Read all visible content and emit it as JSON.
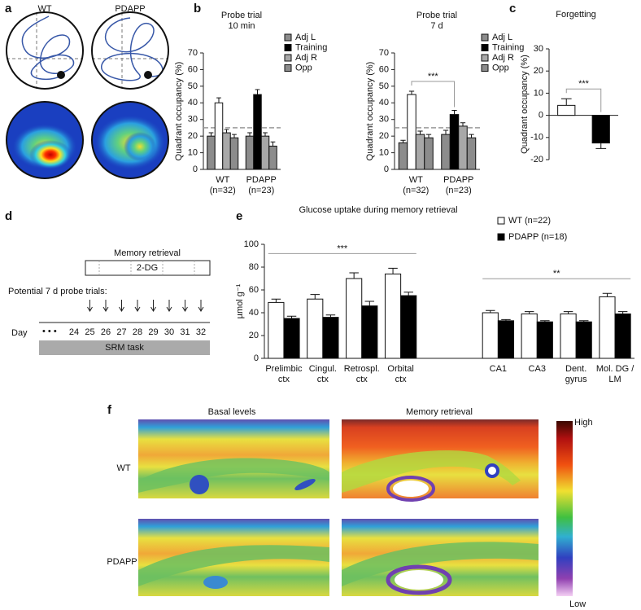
{
  "panel_labels": [
    "a",
    "b",
    "c",
    "d",
    "e",
    "f"
  ],
  "panel_a": {
    "columns": [
      "WT",
      "PDAPP"
    ]
  },
  "chart_data": [
    {
      "type": "bar",
      "title": "Probe trial",
      "subtitle": "10 min",
      "y_label": "Quadrant occupancy (%)",
      "categories": [
        [
          "WT",
          "(n=32)"
        ],
        [
          "PDAPP",
          "(n=23)"
        ]
      ],
      "series": [
        {
          "name": "Adj L",
          "color": "#8c8c8c",
          "values": [
            20,
            20
          ],
          "errors": [
            2,
            2
          ]
        },
        {
          "name": "Training",
          "color": "#000000",
          "bar_colors": [
            "#ffffff",
            "#000000"
          ],
          "values": [
            40,
            45
          ],
          "errors": [
            3,
            3
          ]
        },
        {
          "name": "Adj R",
          "color": "#a8a8a8",
          "values": [
            22,
            20
          ],
          "errors": [
            2,
            2
          ]
        },
        {
          "name": "Opp",
          "color": "#8c8c8c",
          "values": [
            19,
            14
          ],
          "errors": [
            2,
            2.5
          ]
        }
      ],
      "ylim": [
        0,
        70
      ],
      "yticks": [
        0,
        10,
        20,
        30,
        40,
        50,
        60,
        70
      ],
      "reference_line": 25
    },
    {
      "type": "bar",
      "title": "Probe trial",
      "subtitle": "7 d",
      "y_label": "Quadrant occupancy (%)",
      "categories": [
        [
          "WT",
          "(n=32)"
        ],
        [
          "PDAPP",
          "(n=23)"
        ]
      ],
      "series": [
        {
          "name": "Adj L",
          "color": "#8c8c8c",
          "values": [
            16,
            21
          ],
          "errors": [
            1.5,
            2.5
          ]
        },
        {
          "name": "Training",
          "color": "#000000",
          "bar_colors": [
            "#ffffff",
            "#000000"
          ],
          "values": [
            45,
            33
          ],
          "errors": [
            2,
            2.5
          ]
        },
        {
          "name": "Adj R",
          "color": "#a8a8a8",
          "values": [
            21,
            26
          ],
          "errors": [
            2,
            2
          ]
        },
        {
          "name": "Opp",
          "color": "#8c8c8c",
          "values": [
            19,
            19
          ],
          "errors": [
            2,
            2
          ]
        }
      ],
      "ylim": [
        0,
        70
      ],
      "yticks": [
        0,
        10,
        20,
        30,
        40,
        50,
        60,
        70
      ],
      "reference_line": 25,
      "annotations": [
        "***"
      ]
    },
    {
      "type": "bar",
      "title": "Forgetting",
      "y_label": "Quadrant occupancy (%)",
      "values": [
        4.5,
        -12.5
      ],
      "errors": [
        3,
        2.5
      ],
      "colors": [
        "#ffffff",
        "#000000"
      ],
      "ylim": [
        -20,
        30
      ],
      "yticks": [
        -20,
        -10,
        0,
        10,
        20,
        30
      ],
      "annotations": [
        "***"
      ]
    },
    {
      "type": "bar",
      "title": "Glucose uptake during memory retrieval",
      "y_label": "µmol g⁻¹",
      "categories": [
        [
          "Prelimbic",
          "ctx"
        ],
        [
          "Cingul.",
          "ctx"
        ],
        [
          "Retrospl.",
          "ctx"
        ],
        [
          "Orbital",
          "ctx"
        ],
        [
          "CA1"
        ],
        [
          "CA3"
        ],
        [
          "Dent.",
          "gyrus"
        ],
        [
          "Mol. DG /",
          "LM"
        ]
      ],
      "series": [
        {
          "name": "WT (n=22)",
          "color": "#ffffff",
          "values": [
            49,
            52,
            70,
            74,
            40,
            39,
            39,
            54
          ],
          "errors": [
            3,
            4,
            5,
            5,
            2,
            2,
            2,
            3
          ]
        },
        {
          "name": "PDAPP (n=18)",
          "color": "#000000",
          "values": [
            35,
            36,
            46,
            55,
            33,
            32,
            32,
            39
          ],
          "errors": [
            2,
            2,
            4,
            3,
            1,
            1,
            1,
            2
          ]
        }
      ],
      "ylim": [
        0,
        100
      ],
      "yticks": [
        0,
        20,
        40,
        60,
        80,
        100
      ],
      "annotations": [
        "***",
        "**"
      ]
    }
  ],
  "panel_d": {
    "box_title": "Memory retrieval",
    "box_label": "2-DG",
    "probe_label": "Potential 7 d probe trials:",
    "axis_label": "Day",
    "days": [
      24,
      25,
      26,
      27,
      28,
      29,
      30,
      31,
      32
    ],
    "bar_label": "SRM task"
  },
  "panel_f": {
    "columns": [
      "Basal levels",
      "Memory retrieval"
    ],
    "rows": [
      "WT",
      "PDAPP"
    ],
    "scale_high": "High",
    "scale_low": "Low"
  }
}
